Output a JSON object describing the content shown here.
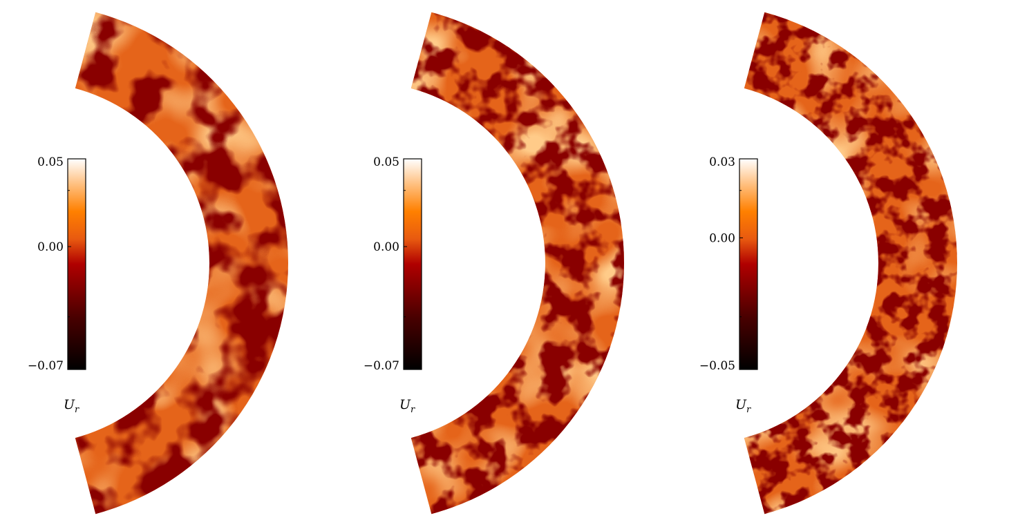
{
  "chart_data": {
    "type": "heatmap",
    "title": "",
    "description_units": "U_r",
    "colormap": [
      "#000000",
      "#5a0000",
      "#b00000",
      "#e05010",
      "#ff8000",
      "#ffc080",
      "#ffffff"
    ],
    "panels": [
      {
        "name": "panel-1",
        "colorbar": {
          "min": -0.07,
          "max": 0.05,
          "zero": 0.0,
          "tick_labels": [
            "0.05",
            "0.00",
            "−0.07"
          ],
          "label_main": "U",
          "label_sub": "r"
        },
        "seed": 3
      },
      {
        "name": "panel-2",
        "colorbar": {
          "min": -0.07,
          "max": 0.05,
          "zero": 0.0,
          "tick_labels": [
            "0.05",
            "0.00",
            "−0.07"
          ],
          "label_main": "U",
          "label_sub": "r"
        },
        "seed": 11
      },
      {
        "name": "panel-3",
        "colorbar": {
          "min": -0.05,
          "max": 0.03,
          "zero": 0.0,
          "tick_labels": [
            "0.03",
            "0.00",
            "−0.05"
          ],
          "label_main": "U",
          "label_sub": "r"
        },
        "seed": 27
      }
    ]
  }
}
